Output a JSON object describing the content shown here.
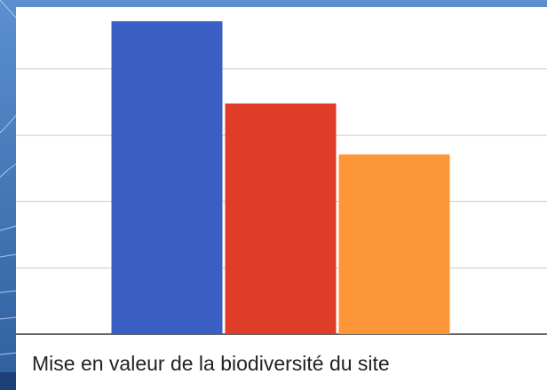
{
  "chart_data": {
    "type": "bar",
    "categories": [
      "Mise en valeur de la biodiversité du site"
    ],
    "series": [
      {
        "color": "#3a5fc4",
        "values": [
          4.72
        ]
      },
      {
        "color": "#e03d28",
        "values": [
          3.48
        ]
      },
      {
        "color": "#fd9638",
        "values": [
          2.71
        ]
      }
    ],
    "ylim": [
      0,
      5
    ],
    "yticks": [
      0,
      1,
      2,
      3,
      4
    ],
    "grid": true
  }
}
